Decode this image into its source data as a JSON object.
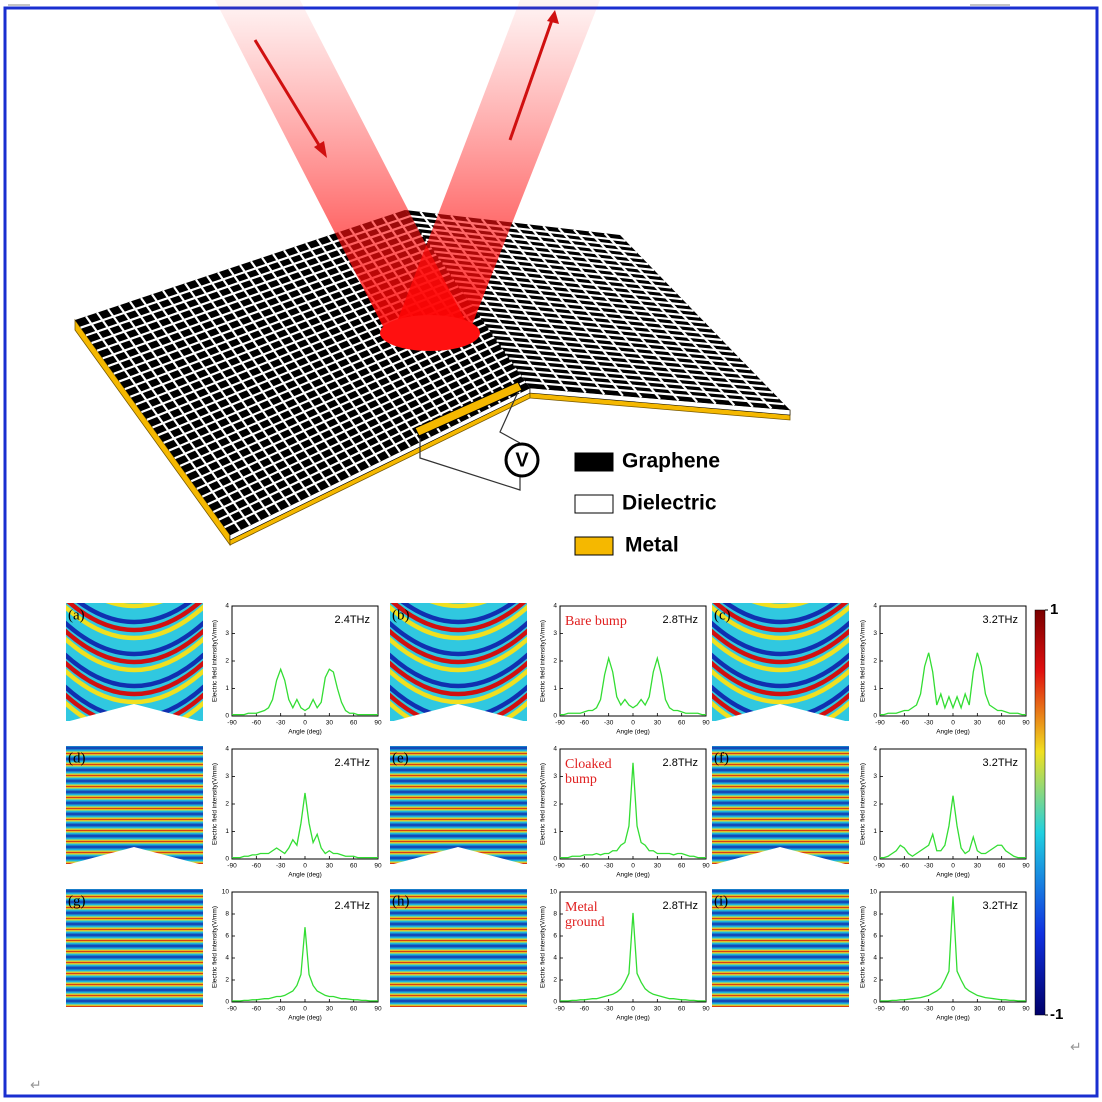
{
  "document": {
    "return_marks": [
      "↵",
      "↵"
    ]
  },
  "figure": {
    "voltmeter": "V",
    "legend": [
      {
        "label": "Graphene",
        "color": "#000000"
      },
      {
        "label": "Dielectric",
        "color": "#ffffff"
      },
      {
        "label": "Metal",
        "color": "#f5b800"
      }
    ]
  },
  "colorbar": {
    "range": [
      -1,
      1
    ],
    "ticks": [
      1,
      -1
    ]
  },
  "chart_data": [
    {
      "type": "line",
      "panel_label": "(a)",
      "annotation": "2.4THz",
      "x_label": "Angle (deg)",
      "y_label": "Electric field intensity(V/mm)",
      "xlim": [
        -90,
        90
      ],
      "xticks": [
        -90,
        -60,
        -30,
        0,
        30,
        60,
        90
      ],
      "ylim": [
        0,
        4
      ],
      "yticks": [
        0,
        1,
        2,
        3,
        4
      ],
      "x": [
        -90,
        -85,
        -80,
        -75,
        -70,
        -65,
        -60,
        -55,
        -50,
        -45,
        -40,
        -35,
        -30,
        -25,
        -20,
        -15,
        -10,
        -5,
        0,
        5,
        10,
        15,
        20,
        25,
        30,
        35,
        40,
        45,
        50,
        55,
        60,
        65,
        70,
        75,
        80,
        85,
        90
      ],
      "series": [
        {
          "color": "#33dd33",
          "values": [
            0.05,
            0.05,
            0.05,
            0.05,
            0.1,
            0.1,
            0.1,
            0.15,
            0.2,
            0.3,
            0.6,
            1.3,
            1.7,
            1.3,
            0.6,
            0.3,
            0.6,
            0.3,
            0.2,
            0.3,
            0.6,
            0.3,
            0.5,
            1.4,
            1.7,
            1.6,
            1.0,
            0.5,
            0.2,
            0.1,
            0.1,
            0.05,
            0.05,
            0.05,
            0.05,
            0.05,
            0.05
          ]
        }
      ]
    },
    {
      "type": "line",
      "panel_label": "(b)",
      "annotation": "2.8THz",
      "notes": [
        "Bare bump"
      ],
      "x_label": "Angle (deg)",
      "y_label": "Electric field intensity(V/mm)",
      "xlim": [
        -90,
        90
      ],
      "xticks": [
        -90,
        -60,
        -30,
        0,
        30,
        60,
        90
      ],
      "ylim": [
        0,
        4
      ],
      "yticks": [
        0,
        1,
        2,
        3,
        4
      ],
      "x": [
        -90,
        -85,
        -80,
        -75,
        -70,
        -65,
        -60,
        -55,
        -50,
        -45,
        -40,
        -35,
        -30,
        -25,
        -20,
        -15,
        -10,
        -5,
        0,
        5,
        10,
        15,
        20,
        25,
        30,
        35,
        40,
        45,
        50,
        55,
        60,
        65,
        70,
        75,
        80,
        85,
        90
      ],
      "series": [
        {
          "color": "#33dd33",
          "values": [
            0.05,
            0.05,
            0.1,
            0.1,
            0.1,
            0.1,
            0.15,
            0.2,
            0.2,
            0.3,
            0.6,
            1.5,
            2.1,
            1.6,
            0.7,
            0.4,
            0.6,
            0.4,
            0.3,
            0.4,
            0.6,
            0.4,
            0.7,
            1.6,
            2.1,
            1.5,
            0.6,
            0.3,
            0.2,
            0.2,
            0.15,
            0.1,
            0.1,
            0.1,
            0.1,
            0.05,
            0.05
          ]
        }
      ]
    },
    {
      "type": "line",
      "panel_label": "(c)",
      "annotation": "3.2THz",
      "x_label": "Angle (deg)",
      "y_label": "Electric field intensity(V/mm)",
      "xlim": [
        -90,
        90
      ],
      "xticks": [
        -90,
        -60,
        -30,
        0,
        30,
        60,
        90
      ],
      "ylim": [
        0,
        4
      ],
      "yticks": [
        0,
        1,
        2,
        3,
        4
      ],
      "x": [
        -90,
        -85,
        -80,
        -75,
        -70,
        -65,
        -60,
        -55,
        -50,
        -45,
        -40,
        -35,
        -30,
        -25,
        -20,
        -15,
        -10,
        -5,
        0,
        5,
        10,
        15,
        20,
        25,
        30,
        35,
        40,
        45,
        50,
        55,
        60,
        65,
        70,
        75,
        80,
        85,
        90
      ],
      "series": [
        {
          "color": "#33dd33",
          "values": [
            0.05,
            0.05,
            0.1,
            0.1,
            0.1,
            0.15,
            0.2,
            0.2,
            0.3,
            0.4,
            0.8,
            1.8,
            2.3,
            1.6,
            0.4,
            0.8,
            0.3,
            0.7,
            0.3,
            0.7,
            0.3,
            0.8,
            0.4,
            1.6,
            2.3,
            1.8,
            0.8,
            0.4,
            0.3,
            0.2,
            0.2,
            0.15,
            0.1,
            0.1,
            0.1,
            0.05,
            0.05
          ]
        }
      ]
    },
    {
      "type": "line",
      "panel_label": "(d)",
      "annotation": "2.4THz",
      "x_label": "Angle (deg)",
      "y_label": "Electric field intensity(V/mm)",
      "xlim": [
        -90,
        90
      ],
      "xticks": [
        -90,
        -60,
        -30,
        0,
        30,
        60,
        90
      ],
      "ylim": [
        0,
        4
      ],
      "yticks": [
        0,
        1,
        2,
        3,
        4
      ],
      "x": [
        -90,
        -85,
        -80,
        -75,
        -70,
        -65,
        -60,
        -55,
        -50,
        -45,
        -40,
        -35,
        -30,
        -25,
        -20,
        -15,
        -10,
        -5,
        0,
        5,
        10,
        15,
        20,
        25,
        30,
        35,
        40,
        45,
        50,
        55,
        60,
        65,
        70,
        75,
        80,
        85,
        90
      ],
      "series": [
        {
          "color": "#33dd33",
          "values": [
            0.05,
            0.05,
            0.05,
            0.1,
            0.1,
            0.15,
            0.15,
            0.2,
            0.2,
            0.2,
            0.3,
            0.4,
            0.3,
            0.2,
            0.4,
            0.7,
            0.5,
            1.3,
            2.4,
            1.3,
            0.6,
            0.9,
            0.4,
            0.2,
            0.3,
            0.2,
            0.2,
            0.15,
            0.1,
            0.1,
            0.1,
            0.05,
            0.05,
            0.05,
            0.05,
            0.05,
            0.05
          ]
        }
      ]
    },
    {
      "type": "line",
      "panel_label": "(e)",
      "annotation": "2.8THz",
      "notes": [
        "Cloaked",
        "bump"
      ],
      "x_label": "Angle (deg)",
      "y_label": "Electric field intensity(V/mm)",
      "xlim": [
        -90,
        90
      ],
      "xticks": [
        -90,
        -60,
        -30,
        0,
        30,
        60,
        90
      ],
      "ylim": [
        0,
        4
      ],
      "yticks": [
        0,
        1,
        2,
        3,
        4
      ],
      "x": [
        -90,
        -85,
        -80,
        -75,
        -70,
        -65,
        -60,
        -55,
        -50,
        -45,
        -40,
        -35,
        -30,
        -25,
        -20,
        -15,
        -10,
        -5,
        0,
        5,
        10,
        15,
        20,
        25,
        30,
        35,
        40,
        45,
        50,
        55,
        60,
        65,
        70,
        75,
        80,
        85,
        90
      ],
      "series": [
        {
          "color": "#33dd33",
          "values": [
            0.05,
            0.05,
            0.05,
            0.1,
            0.1,
            0.1,
            0.15,
            0.15,
            0.15,
            0.2,
            0.15,
            0.2,
            0.2,
            0.3,
            0.3,
            0.5,
            0.6,
            1.2,
            3.5,
            1.2,
            0.6,
            0.5,
            0.3,
            0.3,
            0.2,
            0.2,
            0.2,
            0.2,
            0.15,
            0.2,
            0.2,
            0.15,
            0.1,
            0.1,
            0.05,
            0.05,
            0.05
          ]
        }
      ]
    },
    {
      "type": "line",
      "panel_label": "(f)",
      "annotation": "3.2THz",
      "x_label": "Angle (deg)",
      "y_label": "Electric field intensity(V/mm)",
      "xlim": [
        -90,
        90
      ],
      "xticks": [
        -90,
        -60,
        -30,
        0,
        30,
        60,
        90
      ],
      "ylim": [
        0,
        4
      ],
      "yticks": [
        0,
        1,
        2,
        3,
        4
      ],
      "x": [
        -90,
        -85,
        -80,
        -75,
        -70,
        -65,
        -60,
        -55,
        -50,
        -45,
        -40,
        -35,
        -30,
        -25,
        -20,
        -15,
        -10,
        -5,
        0,
        5,
        10,
        15,
        20,
        25,
        30,
        35,
        40,
        45,
        50,
        55,
        60,
        65,
        70,
        75,
        80,
        85,
        90
      ],
      "series": [
        {
          "color": "#33dd33",
          "values": [
            0.05,
            0.05,
            0.1,
            0.2,
            0.3,
            0.5,
            0.4,
            0.2,
            0.1,
            0.2,
            0.3,
            0.4,
            0.5,
            0.9,
            0.3,
            0.3,
            0.5,
            1.2,
            2.3,
            1.2,
            0.4,
            0.2,
            0.3,
            0.8,
            0.3,
            0.2,
            0.2,
            0.3,
            0.4,
            0.5,
            0.5,
            0.3,
            0.2,
            0.1,
            0.05,
            0.05,
            0.05
          ]
        }
      ]
    },
    {
      "type": "line",
      "panel_label": "(g)",
      "annotation": "2.4THz",
      "x_label": "Angle (deg)",
      "y_label": "Electric field intensity(V/mm)",
      "xlim": [
        -90,
        90
      ],
      "xticks": [
        -90,
        -60,
        -30,
        0,
        30,
        60,
        90
      ],
      "ylim": [
        0,
        10
      ],
      "yticks": [
        0,
        2,
        4,
        6,
        8,
        10
      ],
      "x": [
        -90,
        -85,
        -80,
        -75,
        -70,
        -65,
        -60,
        -55,
        -50,
        -45,
        -40,
        -35,
        -30,
        -25,
        -20,
        -15,
        -10,
        -5,
        0,
        5,
        10,
        15,
        20,
        25,
        30,
        35,
        40,
        45,
        50,
        55,
        60,
        65,
        70,
        75,
        80,
        85,
        90
      ],
      "series": [
        {
          "color": "#33dd33",
          "values": [
            0.1,
            0.1,
            0.1,
            0.15,
            0.15,
            0.2,
            0.2,
            0.25,
            0.3,
            0.3,
            0.4,
            0.5,
            0.5,
            0.6,
            0.8,
            1.0,
            1.5,
            2.5,
            6.8,
            2.5,
            1.5,
            1.0,
            0.8,
            0.6,
            0.5,
            0.5,
            0.4,
            0.3,
            0.3,
            0.25,
            0.2,
            0.2,
            0.15,
            0.15,
            0.1,
            0.1,
            0.1
          ]
        }
      ]
    },
    {
      "type": "line",
      "panel_label": "(h)",
      "annotation": "2.8THz",
      "notes": [
        "Metal",
        "ground"
      ],
      "x_label": "Angle (deg)",
      "y_label": "Electric field intensity(V/mm)",
      "xlim": [
        -90,
        90
      ],
      "xticks": [
        -90,
        -60,
        -30,
        0,
        30,
        60,
        90
      ],
      "ylim": [
        0,
        10
      ],
      "yticks": [
        0,
        2,
        4,
        6,
        8,
        10
      ],
      "x": [
        -90,
        -85,
        -80,
        -75,
        -70,
        -65,
        -60,
        -55,
        -50,
        -45,
        -40,
        -35,
        -30,
        -25,
        -20,
        -15,
        -10,
        -5,
        0,
        5,
        10,
        15,
        20,
        25,
        30,
        35,
        40,
        45,
        50,
        55,
        60,
        65,
        70,
        75,
        80,
        85,
        90
      ],
      "series": [
        {
          "color": "#33dd33",
          "values": [
            0.1,
            0.1,
            0.1,
            0.15,
            0.15,
            0.2,
            0.2,
            0.25,
            0.3,
            0.3,
            0.4,
            0.5,
            0.6,
            0.7,
            0.9,
            1.2,
            1.8,
            2.6,
            8.1,
            2.6,
            1.8,
            1.2,
            0.9,
            0.7,
            0.6,
            0.5,
            0.4,
            0.3,
            0.3,
            0.25,
            0.2,
            0.2,
            0.15,
            0.15,
            0.1,
            0.1,
            0.1
          ]
        }
      ]
    },
    {
      "type": "line",
      "panel_label": "(i)",
      "annotation": "3.2THz",
      "x_label": "Angle (deg)",
      "y_label": "Electric field intensity(V/mm)",
      "xlim": [
        -90,
        90
      ],
      "xticks": [
        -90,
        -60,
        -30,
        0,
        30,
        60,
        90
      ],
      "ylim": [
        0,
        10
      ],
      "yticks": [
        0,
        2,
        4,
        6,
        8,
        10
      ],
      "x": [
        -90,
        -85,
        -80,
        -75,
        -70,
        -65,
        -60,
        -55,
        -50,
        -45,
        -40,
        -35,
        -30,
        -25,
        -20,
        -15,
        -10,
        -5,
        0,
        5,
        10,
        15,
        20,
        25,
        30,
        35,
        40,
        45,
        50,
        55,
        60,
        65,
        70,
        75,
        80,
        85,
        90
      ],
      "series": [
        {
          "color": "#33dd33",
          "values": [
            0.1,
            0.1,
            0.1,
            0.15,
            0.15,
            0.2,
            0.2,
            0.25,
            0.3,
            0.35,
            0.4,
            0.5,
            0.6,
            0.8,
            1.0,
            1.3,
            2.0,
            2.8,
            9.6,
            2.8,
            2.0,
            1.3,
            1.0,
            0.8,
            0.6,
            0.5,
            0.4,
            0.35,
            0.3,
            0.25,
            0.2,
            0.2,
            0.15,
            0.15,
            0.1,
            0.1,
            0.1
          ]
        }
      ]
    }
  ]
}
